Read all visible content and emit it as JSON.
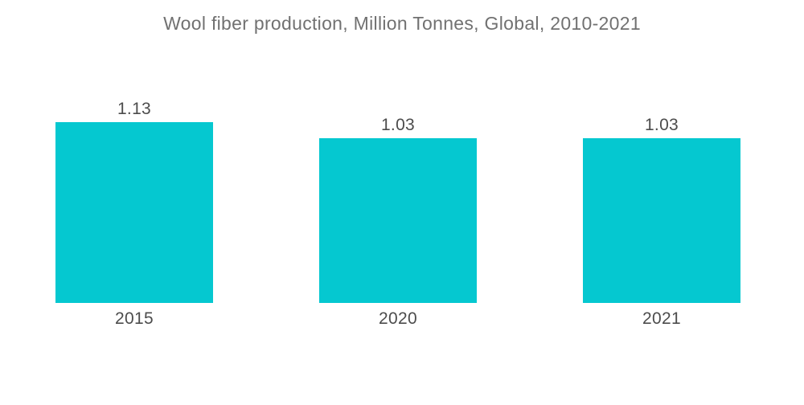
{
  "chart_data": {
    "type": "bar",
    "title": "Wool fiber production, Million Tonnes, Global, 2010-2021",
    "categories": [
      "2015",
      "2020",
      "2021"
    ],
    "values": [
      1.13,
      1.03,
      1.03
    ],
    "value_labels": [
      "1.13",
      "1.03",
      "1.03"
    ],
    "series": [
      {
        "name": "Wool fiber production (Million Tonnes)",
        "values": [
          1.13,
          1.03,
          1.03
        ]
      }
    ],
    "xlabel": "",
    "ylabel": "",
    "ylim": [
      0,
      1.2
    ],
    "grid": false,
    "legend": false,
    "axes_visible": false,
    "colors": {
      "bar": "#05C8D0",
      "title": "#717171",
      "label": "#4c4c4c",
      "background": "#ffffff"
    }
  }
}
